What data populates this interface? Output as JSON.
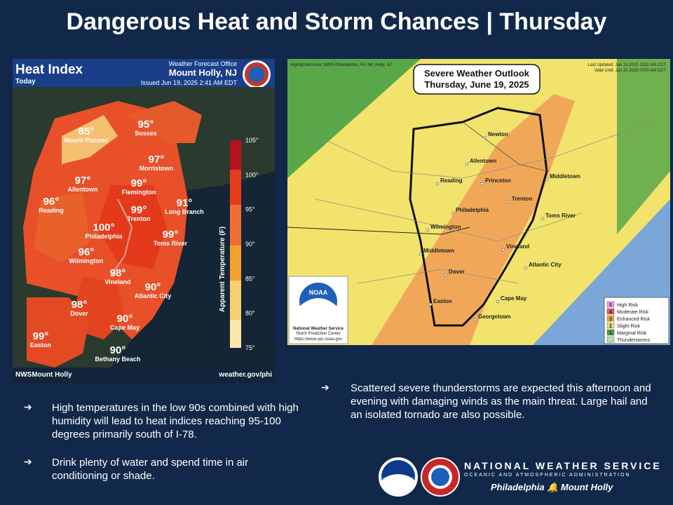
{
  "title": "Dangerous Heat and Storm Chances | Thursday",
  "heat_panel": {
    "title": "Heat Index",
    "subtitle": "Today",
    "office_label": "Weather Forecast Office",
    "office_name": "Mount Holly, NJ",
    "issued": "Issued Jun 19, 2025 2:41 AM EDT",
    "footer_left": "NWSMount Holly",
    "footer_right": "weather.gov/phi",
    "scale_title": "Apparent Temperature (F)",
    "scale_ticks": [
      "105°",
      "100°",
      "95°",
      "90°",
      "85°",
      "80°",
      "75°"
    ],
    "points": [
      {
        "temp": "85°",
        "city": "Mount Pocono"
      },
      {
        "temp": "95°",
        "city": "Sussex"
      },
      {
        "temp": "97°",
        "city": "Morristown"
      },
      {
        "temp": "97°",
        "city": "Allentown"
      },
      {
        "temp": "99°",
        "city": "Flemington"
      },
      {
        "temp": "96°",
        "city": "Reading"
      },
      {
        "temp": "99°",
        "city": "Trenton"
      },
      {
        "temp": "91°",
        "city": "Long Branch"
      },
      {
        "temp": "100°",
        "city": "Philadelphia"
      },
      {
        "temp": "99°",
        "city": "Toms River"
      },
      {
        "temp": "96°",
        "city": "Wilmington"
      },
      {
        "temp": "98°",
        "city": "Vineland"
      },
      {
        "temp": "90°",
        "city": "Atlantic City"
      },
      {
        "temp": "98°",
        "city": "Dover"
      },
      {
        "temp": "90°",
        "city": "Cape May"
      },
      {
        "temp": "99°",
        "city": "Easton"
      },
      {
        "temp": "90°",
        "city": "Bethany Beach"
      }
    ]
  },
  "outlook_panel": {
    "title_line1": "Severe Weather Outlook",
    "title_line2": "Thursday, June 19, 2025",
    "highlighted_area": "Highlighted Area: NWS Philadelphia, PA / Mt. Holly, NJ",
    "last_updated": "Last Updated: Jun 19 2025 1252 AM CDT",
    "valid_until": "Valid Until: Jun 20 2025 0700 AM CDT",
    "noaa_caption_1": "National Weather Service",
    "noaa_caption_2": "Storm Prediction Center",
    "noaa_caption_3": "https://www.spc.noaa.gov",
    "cities": [
      "Newton",
      "Allentown",
      "Reading",
      "Princeton",
      "Middletown",
      "Trenton",
      "Philadelphia",
      "Toms River",
      "Wilmington",
      "Middletown",
      "Vineland",
      "Atlantic City",
      "Dover",
      "Cape May",
      "Easton",
      "Georgetown"
    ],
    "legend": [
      {
        "num": "5",
        "label": "High Risk",
        "color": "#f0a0f0"
      },
      {
        "num": "4",
        "label": "Moderate Risk",
        "color": "#e55a5a"
      },
      {
        "num": "3",
        "label": "Enhanced Risk",
        "color": "#f0a858"
      },
      {
        "num": "2",
        "label": "Slight Risk",
        "color": "#f2e36c"
      },
      {
        "num": "1",
        "label": "Marginal Risk",
        "color": "#4aa04a"
      },
      {
        "num": "",
        "label": "Thunderstorms",
        "color": "#b8e0b0"
      }
    ]
  },
  "bullets": {
    "heat_1": "High temperatures in the low 90s combined with high humidity will lead to heat indices reaching 95-100 degrees primarily south of I-78.",
    "heat_2": "Drink plenty of water and spend time in air conditioning or shade.",
    "storm_1": "Scattered severe thunderstorms are expected this afternoon and evening with damaging winds as the main threat. Large hail and an isolated tornado are also possible.",
    "arrow": "➔"
  },
  "branding": {
    "nws_name": "NATIONAL WEATHER SERVICE",
    "nws_sub": "OCEANIC AND ATMOSPHERIC ADMINISTRATION",
    "office_left": "Philadelphia",
    "office_right": "Mount Holly",
    "noaa_logo_text": "NOAA"
  }
}
